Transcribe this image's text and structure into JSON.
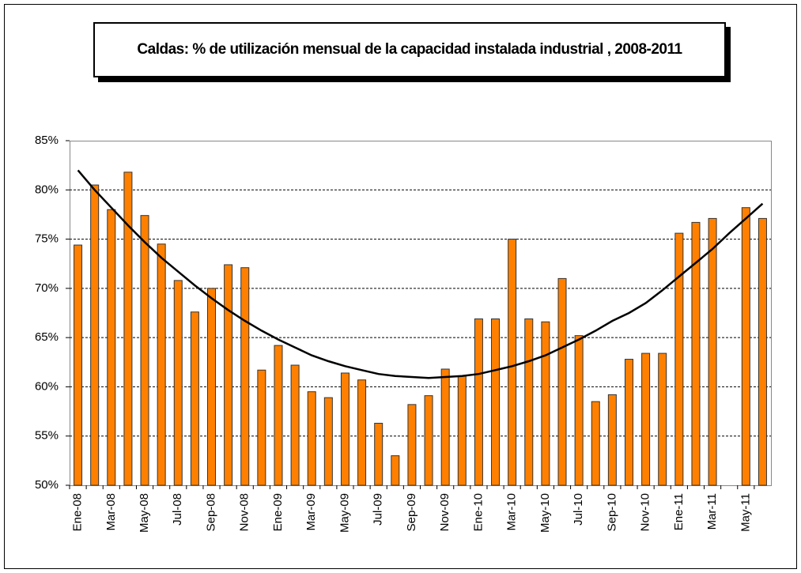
{
  "chart_data": {
    "type": "bar",
    "title": "Caldas: % de utilización mensual de la capacidad instalada industrial , 2008-2011",
    "categories": [
      "Ene-08",
      null,
      "Mar-08",
      null,
      "May-08",
      null,
      "Jul-08",
      null,
      "Sep-08",
      null,
      "Nov-08",
      null,
      "Ene-09",
      null,
      "Mar-09",
      null,
      "May-09",
      null,
      "Jul-09",
      null,
      "Sep-09",
      null,
      "Nov-09",
      null,
      "Ene-10",
      null,
      "Mar-10",
      null,
      "May-10",
      null,
      "Jul-10",
      null,
      "Sep-10",
      null,
      "Nov-10",
      null,
      "Ene-11",
      null,
      "Mar-11",
      null,
      "May-11",
      null
    ],
    "values": [
      74.4,
      80.5,
      78.0,
      81.8,
      77.4,
      74.5,
      70.8,
      67.6,
      70.0,
      72.4,
      72.1,
      61.7,
      64.2,
      62.2,
      59.5,
      58.9,
      61.4,
      60.7,
      56.3,
      53.0,
      58.2,
      59.1,
      61.8,
      61.1,
      66.9,
      66.9,
      75.0,
      66.9,
      66.6,
      71.0,
      65.2,
      58.5,
      59.2,
      62.8,
      63.4,
      63.4,
      75.6,
      76.7,
      77.1,
      null,
      78.2,
      77.1
    ],
    "color": "#ff8000",
    "trend": {
      "color": "#000000",
      "values": [
        82.0,
        80.0,
        78.2,
        76.4,
        74.7,
        73.1,
        71.7,
        70.3,
        69.0,
        67.8,
        66.7,
        65.7,
        64.8,
        64.0,
        63.2,
        62.6,
        62.1,
        61.7,
        61.3,
        61.1,
        61.0,
        60.9,
        61.0,
        61.1,
        61.3,
        61.7,
        62.1,
        62.6,
        63.2,
        64.0,
        64.8,
        65.7,
        66.7,
        67.5,
        68.5,
        69.8,
        71.2,
        72.6,
        74.0,
        75.6,
        77.1,
        78.6
      ]
    },
    "ylim": [
      50,
      85
    ],
    "yticks": [
      {
        "value": 50,
        "label": "50%"
      },
      {
        "value": 55,
        "label": "55%"
      },
      {
        "value": 60,
        "label": "60%"
      },
      {
        "value": 65,
        "label": "65%"
      },
      {
        "value": 70,
        "label": "70%"
      },
      {
        "value": 75,
        "label": "75%"
      },
      {
        "value": 80,
        "label": "80%"
      },
      {
        "value": 85,
        "label": "85%"
      }
    ],
    "grid": true
  }
}
